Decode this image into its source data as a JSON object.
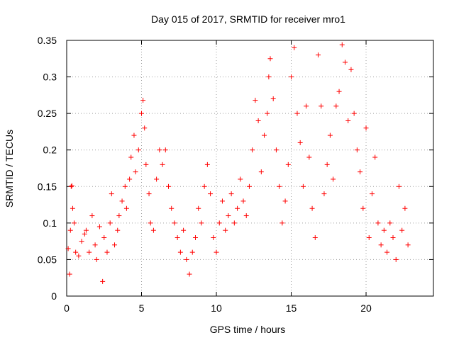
{
  "chart_data": {
    "type": "scatter",
    "title": "Day 015 of 2017, SRMTID for receiver mro1",
    "xlabel": "GPS time / hours",
    "ylabel": "SRMTID / TECUs",
    "xlim": [
      0,
      24.5
    ],
    "ylim": [
      0,
      0.35
    ],
    "xticks": [
      0,
      5,
      10,
      15,
      20
    ],
    "xtick_labels": [
      "0",
      "5",
      "10",
      "15",
      "20"
    ],
    "yticks": [
      0,
      0.05,
      0.1,
      0.15,
      0.2,
      0.25,
      0.3,
      0.35
    ],
    "ytick_labels": [
      "0",
      "0.05",
      "0.1",
      "0.15",
      "0.2",
      "0.25",
      "0.3",
      "0.35"
    ],
    "grid": true,
    "marker": "+",
    "marker_color": "#ff0000",
    "series": [
      {
        "name": "mro1",
        "points": [
          [
            0.1,
            0.065
          ],
          [
            0.2,
            0.03
          ],
          [
            0.25,
            0.09
          ],
          [
            0.3,
            0.15
          ],
          [
            0.35,
            0.151
          ],
          [
            0.4,
            0.12
          ],
          [
            0.5,
            0.1
          ],
          [
            0.6,
            0.06
          ],
          [
            0.8,
            0.055
          ],
          [
            1.0,
            0.075
          ],
          [
            1.2,
            0.085
          ],
          [
            1.3,
            0.09
          ],
          [
            1.5,
            0.06
          ],
          [
            1.7,
            0.11
          ],
          [
            1.9,
            0.07
          ],
          [
            2.0,
            0.05
          ],
          [
            2.2,
            0.095
          ],
          [
            2.4,
            0.02
          ],
          [
            2.5,
            0.08
          ],
          [
            2.7,
            0.06
          ],
          [
            2.9,
            0.1
          ],
          [
            3.0,
            0.14
          ],
          [
            3.2,
            0.07
          ],
          [
            3.4,
            0.09
          ],
          [
            3.5,
            0.11
          ],
          [
            3.7,
            0.13
          ],
          [
            3.9,
            0.15
          ],
          [
            4.0,
            0.12
          ],
          [
            4.2,
            0.16
          ],
          [
            4.3,
            0.19
          ],
          [
            4.5,
            0.22
          ],
          [
            4.6,
            0.17
          ],
          [
            4.8,
            0.2
          ],
          [
            5.0,
            0.25
          ],
          [
            5.1,
            0.268
          ],
          [
            5.2,
            0.23
          ],
          [
            5.3,
            0.18
          ],
          [
            5.5,
            0.14
          ],
          [
            5.6,
            0.1
          ],
          [
            5.8,
            0.09
          ],
          [
            6.0,
            0.16
          ],
          [
            6.2,
            0.2
          ],
          [
            6.4,
            0.18
          ],
          [
            6.6,
            0.2
          ],
          [
            6.8,
            0.15
          ],
          [
            7.0,
            0.12
          ],
          [
            7.2,
            0.1
          ],
          [
            7.4,
            0.08
          ],
          [
            7.6,
            0.06
          ],
          [
            7.8,
            0.09
          ],
          [
            8.0,
            0.05
          ],
          [
            8.2,
            0.03
          ],
          [
            8.4,
            0.06
          ],
          [
            8.6,
            0.08
          ],
          [
            8.8,
            0.12
          ],
          [
            9.0,
            0.1
          ],
          [
            9.2,
            0.15
          ],
          [
            9.4,
            0.18
          ],
          [
            9.6,
            0.14
          ],
          [
            9.8,
            0.08
          ],
          [
            10.0,
            0.06
          ],
          [
            10.2,
            0.1
          ],
          [
            10.4,
            0.13
          ],
          [
            10.6,
            0.09
          ],
          [
            10.8,
            0.11
          ],
          [
            11.0,
            0.14
          ],
          [
            11.2,
            0.1
          ],
          [
            11.4,
            0.12
          ],
          [
            11.6,
            0.16
          ],
          [
            11.8,
            0.13
          ],
          [
            12.0,
            0.11
          ],
          [
            12.2,
            0.15
          ],
          [
            12.4,
            0.2
          ],
          [
            12.6,
            0.268
          ],
          [
            12.8,
            0.24
          ],
          [
            13.0,
            0.17
          ],
          [
            13.2,
            0.22
          ],
          [
            13.4,
            0.25
          ],
          [
            13.5,
            0.3
          ],
          [
            13.6,
            0.325
          ],
          [
            13.8,
            0.27
          ],
          [
            14.0,
            0.2
          ],
          [
            14.2,
            0.15
          ],
          [
            14.4,
            0.1
          ],
          [
            14.6,
            0.13
          ],
          [
            14.8,
            0.18
          ],
          [
            15.0,
            0.3
          ],
          [
            15.2,
            0.34
          ],
          [
            15.4,
            0.25
          ],
          [
            15.6,
            0.21
          ],
          [
            15.8,
            0.15
          ],
          [
            16.0,
            0.26
          ],
          [
            16.2,
            0.19
          ],
          [
            16.4,
            0.12
          ],
          [
            16.6,
            0.08
          ],
          [
            16.8,
            0.33
          ],
          [
            17.0,
            0.26
          ],
          [
            17.2,
            0.14
          ],
          [
            17.4,
            0.18
          ],
          [
            17.6,
            0.22
          ],
          [
            17.8,
            0.16
          ],
          [
            18.0,
            0.26
          ],
          [
            18.2,
            0.28
          ],
          [
            18.4,
            0.344
          ],
          [
            18.6,
            0.32
          ],
          [
            18.8,
            0.24
          ],
          [
            19.0,
            0.31
          ],
          [
            19.2,
            0.25
          ],
          [
            19.4,
            0.2
          ],
          [
            19.6,
            0.17
          ],
          [
            19.8,
            0.12
          ],
          [
            20.0,
            0.23
          ],
          [
            20.2,
            0.08
          ],
          [
            20.4,
            0.14
          ],
          [
            20.6,
            0.19
          ],
          [
            20.8,
            0.1
          ],
          [
            21.0,
            0.07
          ],
          [
            21.2,
            0.09
          ],
          [
            21.4,
            0.06
          ],
          [
            21.6,
            0.1
          ],
          [
            21.8,
            0.08
          ],
          [
            22.0,
            0.05
          ],
          [
            22.2,
            0.15
          ],
          [
            22.4,
            0.09
          ],
          [
            22.6,
            0.12
          ],
          [
            22.8,
            0.07
          ]
        ]
      }
    ]
  }
}
